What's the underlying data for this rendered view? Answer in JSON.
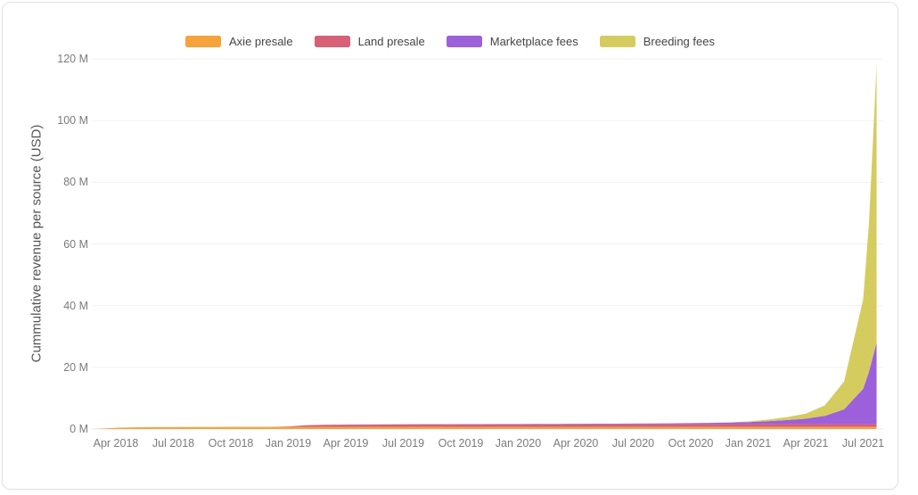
{
  "chart_data": {
    "type": "area",
    "stacked": true,
    "title": "",
    "xlabel": "",
    "ylabel": "Cummulative revenue per source (USD)",
    "ylim": [
      0,
      120
    ],
    "y_unit": "millions USD",
    "grid": "horizontal",
    "legend_position": "top-center",
    "y_tick_labels": [
      "0 M",
      "20 M",
      "40 M",
      "60 M",
      "80 M",
      "100 M",
      "120 M"
    ],
    "y_tick_values": [
      0,
      20,
      40,
      60,
      80,
      100,
      120
    ],
    "x_tick_labels": [
      "Apr 2018",
      "Jul 2018",
      "Oct 2018",
      "Jan 2019",
      "Apr 2019",
      "Jul 2019",
      "Oct 2019",
      "Jan 2020",
      "Apr 2020",
      "Jul 2020",
      "Oct 2020",
      "Jan 2021",
      "Apr 2021",
      "Jul 2021"
    ],
    "x": [
      "2018-03-01",
      "2018-04-01",
      "2018-05-01",
      "2018-06-01",
      "2018-07-01",
      "2018-08-01",
      "2018-09-01",
      "2018-10-01",
      "2018-11-01",
      "2018-12-01",
      "2019-01-01",
      "2019-02-01",
      "2019-03-01",
      "2019-04-01",
      "2019-05-01",
      "2019-06-01",
      "2019-07-01",
      "2019-08-01",
      "2019-09-01",
      "2019-10-01",
      "2019-11-01",
      "2019-12-01",
      "2020-01-01",
      "2020-02-01",
      "2020-03-01",
      "2020-04-01",
      "2020-05-01",
      "2020-06-01",
      "2020-07-01",
      "2020-08-01",
      "2020-09-01",
      "2020-10-01",
      "2020-11-01",
      "2020-12-01",
      "2021-01-01",
      "2021-02-01",
      "2021-03-01",
      "2021-04-01",
      "2021-05-01",
      "2021-06-01",
      "2021-07-01",
      "2021-07-10",
      "2021-07-22"
    ],
    "series": [
      {
        "name": "Axie presale",
        "color": "#F6A33C",
        "values": [
          0.05,
          0.4,
          0.55,
          0.6,
          0.63,
          0.65,
          0.66,
          0.67,
          0.68,
          0.68,
          0.69,
          0.69,
          0.69,
          0.7,
          0.7,
          0.7,
          0.7,
          0.7,
          0.7,
          0.7,
          0.7,
          0.7,
          0.7,
          0.7,
          0.7,
          0.7,
          0.7,
          0.7,
          0.7,
          0.7,
          0.7,
          0.7,
          0.7,
          0.7,
          0.7,
          0.7,
          0.7,
          0.7,
          0.7,
          0.7,
          0.7,
          0.7,
          0.7
        ]
      },
      {
        "name": "Land presale",
        "color": "#D75F76",
        "values": [
          0,
          0,
          0,
          0,
          0,
          0,
          0,
          0,
          0,
          0.02,
          0.15,
          0.55,
          0.65,
          0.7,
          0.72,
          0.73,
          0.74,
          0.75,
          0.76,
          0.77,
          0.78,
          0.78,
          0.79,
          0.79,
          0.8,
          0.8,
          0.8,
          0.81,
          0.81,
          0.82,
          0.82,
          0.83,
          0.83,
          0.84,
          0.84,
          0.84,
          0.85,
          0.85,
          0.85,
          0.85,
          0.85,
          0.85,
          0.85
        ]
      },
      {
        "name": "Marketplace fees",
        "color": "#9C60DA",
        "values": [
          0,
          0,
          0,
          0,
          0,
          0,
          0,
          0,
          0,
          0,
          0,
          0,
          0.02,
          0.03,
          0.05,
          0.06,
          0.08,
          0.09,
          0.1,
          0.11,
          0.12,
          0.13,
          0.15,
          0.16,
          0.18,
          0.2,
          0.22,
          0.24,
          0.27,
          0.29,
          0.32,
          0.38,
          0.45,
          0.55,
          0.7,
          1.0,
          1.35,
          1.8,
          2.7,
          4.8,
          11.5,
          17.0,
          26.5
        ]
      },
      {
        "name": "Breeding fees",
        "color": "#D5CC5F",
        "values": [
          0,
          0,
          0,
          0,
          0,
          0,
          0,
          0,
          0,
          0,
          0,
          0,
          0,
          0,
          0,
          0,
          0,
          0,
          0,
          0,
          0,
          0,
          0,
          0,
          0,
          0,
          0,
          0,
          0,
          0,
          0,
          0.02,
          0.03,
          0.05,
          0.2,
          0.5,
          0.95,
          1.6,
          3.4,
          9.0,
          29.0,
          48.0,
          90.0
        ]
      }
    ],
    "end_totals_musd": {
      "Axie presale": 0.7,
      "Land presale": 0.85,
      "Marketplace fees": 26.5,
      "Breeding fees": 90.0,
      "total": 118.05
    }
  },
  "colors": {
    "grid_line": "#f1f1f4",
    "baseline": "#e9e9ee",
    "tick_text": "#7b7b7b",
    "legend_text": "#444444",
    "axis_title_text": "#555555",
    "card_border": "#e2e2ea"
  }
}
